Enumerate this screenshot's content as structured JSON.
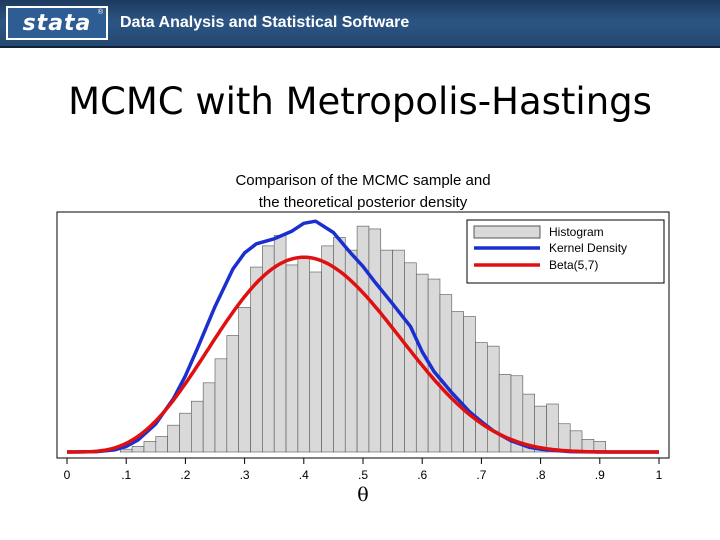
{
  "header": {
    "logo_text": "stata",
    "logo_mark": "®",
    "tagline": "Data Analysis and Statistical Software"
  },
  "slide": {
    "title": "MCMC with Metropolis-Hastings"
  },
  "colors": {
    "histogram_fill": "#d9d9d9",
    "histogram_edge": "#555555",
    "kernel_density": "#1a2fd0",
    "beta": "#e01010"
  },
  "chart_data": {
    "type": "histogram",
    "title": "Comparison of the MCMC sample and",
    "subtitle": "the theoretical posterior density",
    "xlabel": "θ",
    "ylabel": "",
    "xlim": [
      0,
      1
    ],
    "ylim": [
      0,
      3.4
    ],
    "xticks": [
      "0",
      ".1",
      ".2",
      ".3",
      ".4",
      ".5",
      ".6",
      ".7",
      ".8",
      ".9",
      "1"
    ],
    "bin_width": 0.02,
    "bins_start": 0.09,
    "bin_heights": [
      0.04,
      0.08,
      0.15,
      0.22,
      0.38,
      0.55,
      0.72,
      0.98,
      1.32,
      1.65,
      2.05,
      2.62,
      2.92,
      3.07,
      2.65,
      2.77,
      2.55,
      2.92,
      3.04,
      2.86,
      3.2,
      3.16,
      2.86,
      2.86,
      2.68,
      2.52,
      2.45,
      2.23,
      1.99,
      1.92,
      1.55,
      1.5,
      1.1,
      1.08,
      0.82,
      0.65,
      0.68,
      0.4,
      0.3,
      0.18,
      0.15
    ],
    "series": [
      {
        "name": "Kernel Density",
        "color": "#1a2fd0",
        "x": [
          0,
          0.05,
          0.08,
          0.1,
          0.12,
          0.15,
          0.18,
          0.2,
          0.22,
          0.25,
          0.28,
          0.3,
          0.32,
          0.35,
          0.38,
          0.4,
          0.42,
          0.45,
          0.48,
          0.5,
          0.52,
          0.55,
          0.58,
          0.6,
          0.62,
          0.65,
          0.68,
          0.7,
          0.72,
          0.75,
          0.78,
          0.8,
          0.85,
          0.9,
          1
        ],
        "y": [
          0,
          0.005,
          0.03,
          0.08,
          0.17,
          0.4,
          0.76,
          1.08,
          1.46,
          2.06,
          2.59,
          2.82,
          2.95,
          3.02,
          3.13,
          3.24,
          3.27,
          3.11,
          2.81,
          2.63,
          2.41,
          2.1,
          1.78,
          1.42,
          1.14,
          0.84,
          0.57,
          0.43,
          0.3,
          0.16,
          0.07,
          0.04,
          0.005,
          0,
          0
        ]
      },
      {
        "name": "Beta(5,7)",
        "color": "#e01010",
        "distribution": {
          "family": "beta",
          "a": 5,
          "b": 7
        }
      }
    ],
    "histogram_label": "Histogram",
    "legend_position": "top-right",
    "grid": false
  }
}
